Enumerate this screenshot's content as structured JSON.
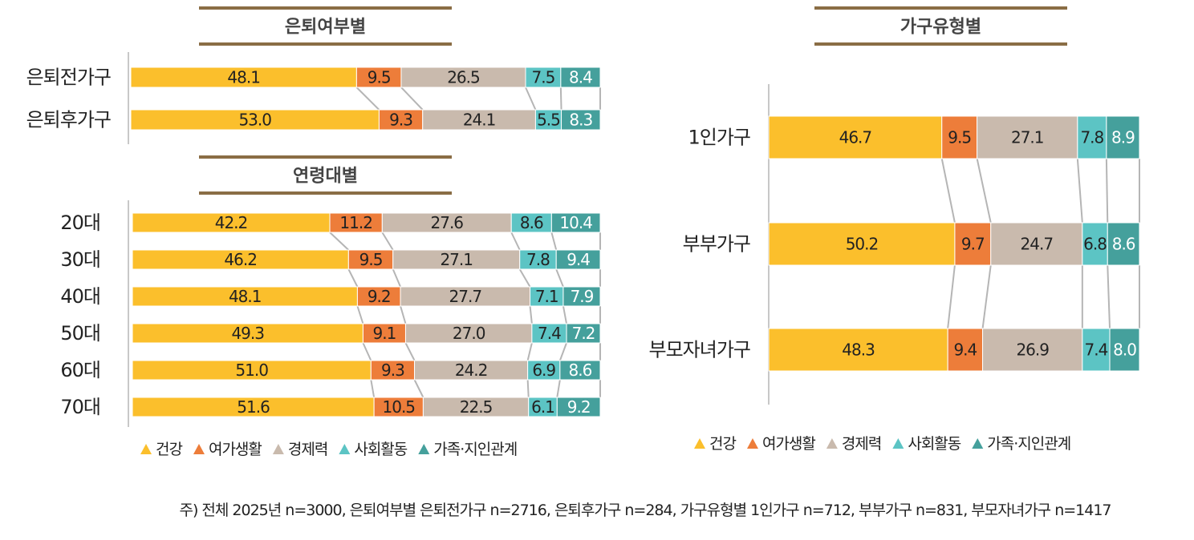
{
  "colors": {
    "health": "#FBBF2C",
    "leisure": "#ED7D3A",
    "economy": "#C9BAAD",
    "social": "#5CC4C4",
    "family": "#45A09C",
    "title_rule": "#8A6D45",
    "connector": "#B5B5B5"
  },
  "legend": [
    "건강",
    "여가생활",
    "경제력",
    "사회활동",
    "가족·지인관계"
  ],
  "footnote": "주) 전체 2025년 n=3000, 은퇴여부별 은퇴전가구 n=2716, 은퇴후가구 n=284, 가구유형별 1인가구 n=712, 부부가구 n=831, 부모자녀가구 n=1417",
  "chart_data": [
    {
      "type": "bar",
      "stacked": "100%",
      "orientation": "horizontal",
      "title": "은퇴여부별",
      "categories": [
        "은퇴전가구",
        "은퇴후가구"
      ],
      "series": [
        {
          "name": "건강",
          "values": [
            48.1,
            53.0
          ]
        },
        {
          "name": "여가생활",
          "values": [
            9.5,
            9.3
          ]
        },
        {
          "name": "경제력",
          "values": [
            26.5,
            24.1
          ]
        },
        {
          "name": "사회활동",
          "values": [
            7.5,
            5.5
          ]
        },
        {
          "name": "가족·지인관계",
          "values": [
            8.4,
            8.3
          ]
        }
      ]
    },
    {
      "type": "bar",
      "stacked": "100%",
      "orientation": "horizontal",
      "title": "연령대별",
      "categories": [
        "20대",
        "30대",
        "40대",
        "50대",
        "60대",
        "70대"
      ],
      "series": [
        {
          "name": "건강",
          "values": [
            42.2,
            46.2,
            48.1,
            49.3,
            51.0,
            51.6
          ]
        },
        {
          "name": "여가생활",
          "values": [
            11.2,
            9.5,
            9.2,
            9.1,
            9.3,
            10.5
          ]
        },
        {
          "name": "경제력",
          "values": [
            27.6,
            27.1,
            27.7,
            27.0,
            24.2,
            22.5
          ]
        },
        {
          "name": "사회활동",
          "values": [
            8.6,
            7.8,
            7.1,
            7.4,
            6.9,
            6.1
          ]
        },
        {
          "name": "가족·지인관계",
          "values": [
            10.4,
            9.4,
            7.9,
            7.2,
            8.6,
            9.2
          ]
        }
      ],
      "legend_position": "bottom"
    },
    {
      "type": "bar",
      "stacked": "100%",
      "orientation": "horizontal",
      "title": "가구유형별",
      "categories": [
        "1인가구",
        "부부가구",
        "부모자녀가구"
      ],
      "series": [
        {
          "name": "건강",
          "values": [
            46.7,
            50.2,
            48.3
          ]
        },
        {
          "name": "여가생활",
          "values": [
            9.5,
            9.7,
            9.4
          ]
        },
        {
          "name": "경제력",
          "values": [
            27.1,
            24.7,
            26.9
          ]
        },
        {
          "name": "사회활동",
          "values": [
            7.8,
            6.8,
            7.4
          ]
        },
        {
          "name": "가족·지인관계",
          "values": [
            8.9,
            8.6,
            8.0
          ]
        }
      ],
      "legend_position": "bottom"
    }
  ]
}
